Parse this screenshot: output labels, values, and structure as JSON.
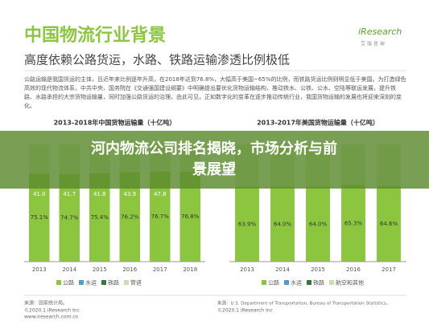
{
  "header": {
    "title": "中国物流行业背景",
    "subtitle": "高度依赖公路货运，水路、铁路运输渗透比例极低",
    "logo": "iResearch",
    "logo_sub": "艾 瑞 咨 询"
  },
  "paragraph": "公路运输是我国货运的主体，且近年来比例逐年升高，在2018年达到76.8%，大幅高于美国~65%的比例，而铁路货运比例则明显低于美国。为打造绿色高效的现代物流体系，中共中央、国务院在《交通强国建设纲要》中明确提出要优化货物运输结构，推动铁水、公铁、公水、空陆等联运发展，提升铁路、水路承担的大宗货物运输量，同时加强公路货运的治理。由此可见，正如数字化的变革在逐步推动传统行业，我国货物运输的发展也将迎来深刻的变化。",
  "overlay": "河内物流公司排名揭晓，市场分析与前景展望",
  "footer": {
    "left_source": "来源：国家统计局。",
    "left_copy": "©2020.1 iResearch Inc",
    "left_site": "www.iresearch.com.cn",
    "right_source": "来源：U.S. Department of Transportation, Bureau of Transportation Statistics。",
    "right_copy": "©2020.1 iResearch Inc"
  },
  "chart_data": [
    {
      "type": "bar",
      "title": "2013-2018年中国货物运输量（十亿吨）",
      "categories": [
        "2013",
        "2014",
        "2015",
        "2016",
        "2017",
        "2018"
      ],
      "series": [
        {
          "name": "公路",
          "color": "#8cc63f",
          "values": [
            75.1,
            74.7,
            75.4,
            76.2,
            76.7,
            76.8
          ],
          "value_labels": [
            "75.1%",
            "74.7%",
            "75.4%",
            "76.2%",
            "76.7%",
            "76.8%"
          ]
        }
      ],
      "total_labels": [
        "41.0",
        "41.7",
        "41.8",
        "43.9",
        "47.8",
        null
      ],
      "legend_others": [
        {
          "name": "水运",
          "color": "#4a9fd6"
        },
        {
          "name": "铁路",
          "color": "#2e7d32"
        },
        {
          "name": "管道",
          "color": "#c5e1a5"
        }
      ],
      "ylim": [
        0,
        100
      ]
    },
    {
      "type": "bar",
      "title": "2013-2017年美国货物运输量（十亿吨）",
      "categories": [
        "2013",
        "2014",
        "2015",
        "2016",
        "2017"
      ],
      "series": [
        {
          "name": "公路",
          "color": "#8cc63f",
          "values": [
            63.9,
            64.0,
            64.0,
            65.3,
            64.6
          ],
          "value_labels": [
            "63.9%",
            "64.0%",
            "64.0%",
            "65.3%",
            "64.6%"
          ]
        }
      ],
      "legend_others": [
        {
          "name": "水运",
          "color": "#4a9fd6"
        },
        {
          "name": "铁路",
          "color": "#2e7d32"
        },
        {
          "name": "航空和其他",
          "color": "#c5e1a5"
        }
      ],
      "ylim": [
        0,
        100
      ]
    }
  ]
}
